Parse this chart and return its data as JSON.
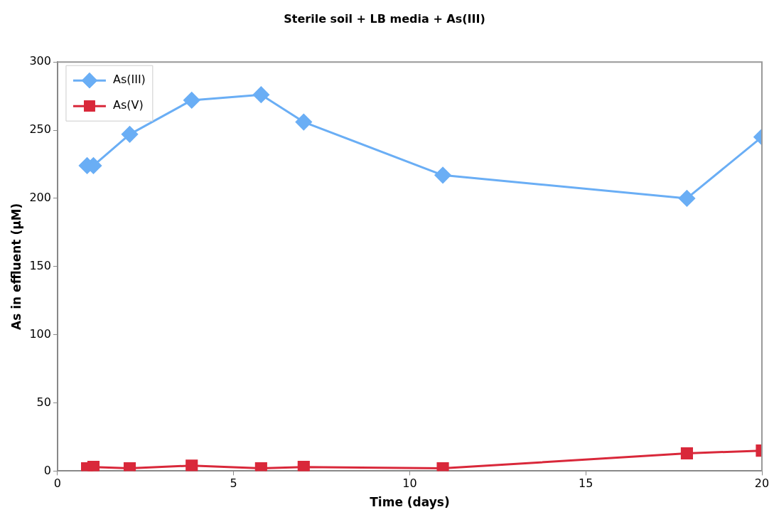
{
  "chart_data": {
    "type": "line",
    "title": "Sterile soil + LB media + As(III)",
    "xlabel": "Time (days)",
    "ylabel": "As in effluent (µM)",
    "xlim": [
      0,
      20
    ],
    "xticks": [
      0,
      5,
      10,
      15,
      20
    ],
    "ylim": [
      0,
      300
    ],
    "yticks": [
      0,
      50,
      100,
      150,
      200,
      250,
      300
    ],
    "grid": false,
    "legend": "top left",
    "line_style": "solid",
    "series": [
      {
        "name": "As(III)",
        "color": "#6aaef5",
        "marker": "diamond",
        "x": [
          0.84,
          1.02,
          2.05,
          3.81,
          5.78,
          6.99,
          10.94,
          17.87,
          20
        ],
        "values": [
          224,
          224,
          247,
          272,
          276,
          256,
          217,
          200,
          245
        ]
      },
      {
        "name": "As(V)",
        "color": "#d9283a",
        "marker": "square",
        "x": [
          0.84,
          1.02,
          2.05,
          3.81,
          5.78,
          6.99,
          10.94,
          17.87,
          20
        ],
        "values": [
          2,
          3,
          2,
          4,
          2,
          3,
          2,
          13,
          15
        ]
      }
    ]
  }
}
